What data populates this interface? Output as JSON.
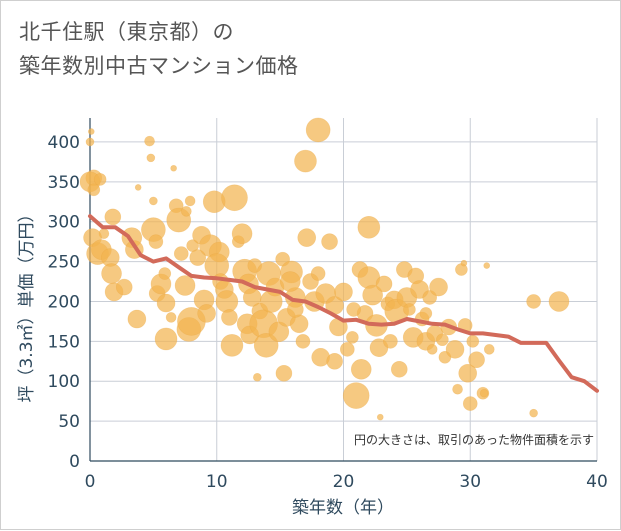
{
  "title_line1": "北千住駅（東京都）の",
  "title_line2": "築年数別中古マンション価格",
  "colors": {
    "bubble": "#f2b450",
    "line": "#d26a5a",
    "grid": "#c9ced6",
    "axis": "#2f4a5e"
  },
  "chart_data": {
    "type": "scatter",
    "title": "北千住駅（東京都）の築年数別中古マンション価格",
    "xlabel": "築年数（年）",
    "ylabel": "坪（3.3㎡）単価（万円）",
    "xlim": [
      0,
      40
    ],
    "ylim": [
      0,
      430
    ],
    "xticks": [
      "0",
      "10",
      "20",
      "30",
      "40"
    ],
    "yticks": [
      "0",
      "50",
      "100",
      "150",
      "200",
      "250",
      "300",
      "350",
      "400"
    ],
    "annotation": "円の大きさは、取引のあった物件面積を示す",
    "grid": true,
    "bubbles": [
      {
        "x": 0.1,
        "y": 413,
        "s": 3
      },
      {
        "x": 0.0,
        "y": 400,
        "s": 4
      },
      {
        "x": 0.3,
        "y": 355,
        "s": 8
      },
      {
        "x": 0.0,
        "y": 350,
        "s": 10
      },
      {
        "x": 0.8,
        "y": 353,
        "s": 6
      },
      {
        "x": 0.3,
        "y": 340,
        "s": 6
      },
      {
        "x": 1.1,
        "y": 285,
        "s": 5
      },
      {
        "x": 0.2,
        "y": 280,
        "s": 9
      },
      {
        "x": 0.6,
        "y": 260,
        "s": 11
      },
      {
        "x": 0.9,
        "y": 265,
        "s": 10
      },
      {
        "x": 1.8,
        "y": 306,
        "s": 8
      },
      {
        "x": 1.6,
        "y": 255,
        "s": 9
      },
      {
        "x": 1.7,
        "y": 235,
        "s": 10
      },
      {
        "x": 1.9,
        "y": 212,
        "s": 9
      },
      {
        "x": 2.7,
        "y": 218,
        "s": 8
      },
      {
        "x": 3.3,
        "y": 280,
        "s": 10
      },
      {
        "x": 3.5,
        "y": 265,
        "s": 9
      },
      {
        "x": 3.8,
        "y": 343,
        "s": 3
      },
      {
        "x": 3.7,
        "y": 178,
        "s": 9
      },
      {
        "x": 4.7,
        "y": 401,
        "s": 5
      },
      {
        "x": 4.8,
        "y": 380,
        "s": 4
      },
      {
        "x": 5.0,
        "y": 326,
        "s": 4
      },
      {
        "x": 5.0,
        "y": 290,
        "s": 12
      },
      {
        "x": 5.2,
        "y": 275,
        "s": 7
      },
      {
        "x": 5.3,
        "y": 210,
        "s": 8
      },
      {
        "x": 5.6,
        "y": 222,
        "s": 10
      },
      {
        "x": 5.9,
        "y": 235,
        "s": 6
      },
      {
        "x": 6.0,
        "y": 198,
        "s": 9
      },
      {
        "x": 6.0,
        "y": 153,
        "s": 11
      },
      {
        "x": 6.4,
        "y": 180,
        "s": 5
      },
      {
        "x": 6.6,
        "y": 367,
        "s": 3
      },
      {
        "x": 6.8,
        "y": 320,
        "s": 7
      },
      {
        "x": 7.0,
        "y": 302,
        "s": 12
      },
      {
        "x": 7.2,
        "y": 260,
        "s": 7
      },
      {
        "x": 7.5,
        "y": 220,
        "s": 10
      },
      {
        "x": 7.8,
        "y": 165,
        "s": 12
      },
      {
        "x": 8.0,
        "y": 175,
        "s": 14
      },
      {
        "x": 7.6,
        "y": 313,
        "s": 5
      },
      {
        "x": 7.9,
        "y": 326,
        "s": 5
      },
      {
        "x": 8.1,
        "y": 270,
        "s": 6
      },
      {
        "x": 8.5,
        "y": 255,
        "s": 8
      },
      {
        "x": 8.8,
        "y": 283,
        "s": 9
      },
      {
        "x": 9.0,
        "y": 202,
        "s": 10
      },
      {
        "x": 9.2,
        "y": 185,
        "s": 9
      },
      {
        "x": 9.5,
        "y": 270,
        "s": 11
      },
      {
        "x": 9.8,
        "y": 325,
        "s": 11
      },
      {
        "x": 10.2,
        "y": 262,
        "s": 10
      },
      {
        "x": 10.0,
        "y": 245,
        "s": 12
      },
      {
        "x": 10.3,
        "y": 225,
        "s": 8
      },
      {
        "x": 10.6,
        "y": 215,
        "s": 9
      },
      {
        "x": 10.8,
        "y": 200,
        "s": 11
      },
      {
        "x": 11.0,
        "y": 180,
        "s": 8
      },
      {
        "x": 11.2,
        "y": 145,
        "s": 11
      },
      {
        "x": 11.4,
        "y": 330,
        "s": 13
      },
      {
        "x": 11.7,
        "y": 275,
        "s": 6
      },
      {
        "x": 12.0,
        "y": 285,
        "s": 10
      },
      {
        "x": 12.2,
        "y": 238,
        "s": 12
      },
      {
        "x": 12.5,
        "y": 222,
        "s": 10
      },
      {
        "x": 12.8,
        "y": 205,
        "s": 9
      },
      {
        "x": 12.4,
        "y": 172,
        "s": 10
      },
      {
        "x": 12.6,
        "y": 158,
        "s": 9
      },
      {
        "x": 13.0,
        "y": 245,
        "s": 7
      },
      {
        "x": 13.2,
        "y": 105,
        "s": 4
      },
      {
        "x": 13.4,
        "y": 188,
        "s": 8
      },
      {
        "x": 13.7,
        "y": 172,
        "s": 14
      },
      {
        "x": 13.9,
        "y": 145,
        "s": 12
      },
      {
        "x": 14.1,
        "y": 235,
        "s": 12
      },
      {
        "x": 14.3,
        "y": 200,
        "s": 11
      },
      {
        "x": 14.6,
        "y": 218,
        "s": 9
      },
      {
        "x": 14.9,
        "y": 162,
        "s": 10
      },
      {
        "x": 15.2,
        "y": 253,
        "s": 7
      },
      {
        "x": 15.3,
        "y": 110,
        "s": 8
      },
      {
        "x": 15.5,
        "y": 180,
        "s": 9
      },
      {
        "x": 15.9,
        "y": 237,
        "s": 11
      },
      {
        "x": 16.2,
        "y": 205,
        "s": 10
      },
      {
        "x": 16.5,
        "y": 172,
        "s": 9
      },
      {
        "x": 16.8,
        "y": 150,
        "s": 7
      },
      {
        "x": 17.0,
        "y": 376,
        "s": 11
      },
      {
        "x": 17.1,
        "y": 280,
        "s": 9
      },
      {
        "x": 17.4,
        "y": 225,
        "s": 8
      },
      {
        "x": 17.7,
        "y": 200,
        "s": 10
      },
      {
        "x": 18.0,
        "y": 415,
        "s": 12
      },
      {
        "x": 18.0,
        "y": 235,
        "s": 7
      },
      {
        "x": 18.2,
        "y": 130,
        "s": 9
      },
      {
        "x": 18.6,
        "y": 210,
        "s": 10
      },
      {
        "x": 18.9,
        "y": 275,
        "s": 8
      },
      {
        "x": 19.3,
        "y": 195,
        "s": 9
      },
      {
        "x": 19.3,
        "y": 125,
        "s": 8
      },
      {
        "x": 19.6,
        "y": 168,
        "s": 9
      },
      {
        "x": 20.0,
        "y": 212,
        "s": 9
      },
      {
        "x": 20.3,
        "y": 140,
        "s": 7
      },
      {
        "x": 20.7,
        "y": 155,
        "s": 6
      },
      {
        "x": 21.0,
        "y": 82,
        "s": 13
      },
      {
        "x": 21.3,
        "y": 240,
        "s": 8
      },
      {
        "x": 21.4,
        "y": 115,
        "s": 10
      },
      {
        "x": 21.7,
        "y": 185,
        "s": 8
      },
      {
        "x": 22.0,
        "y": 293,
        "s": 11
      },
      {
        "x": 22.0,
        "y": 230,
        "s": 11
      },
      {
        "x": 22.3,
        "y": 208,
        "s": 10
      },
      {
        "x": 22.6,
        "y": 170,
        "s": 11
      },
      {
        "x": 22.8,
        "y": 142,
        "s": 9
      },
      {
        "x": 22.9,
        "y": 55,
        "s": 3
      },
      {
        "x": 23.2,
        "y": 222,
        "s": 8
      },
      {
        "x": 23.5,
        "y": 197,
        "s": 7
      },
      {
        "x": 23.7,
        "y": 150,
        "s": 7
      },
      {
        "x": 24.0,
        "y": 202,
        "s": 9
      },
      {
        "x": 24.2,
        "y": 188,
        "s": 12
      },
      {
        "x": 24.4,
        "y": 115,
        "s": 8
      },
      {
        "x": 24.8,
        "y": 240,
        "s": 8
      },
      {
        "x": 25.0,
        "y": 205,
        "s": 10
      },
      {
        "x": 25.2,
        "y": 190,
        "s": 6
      },
      {
        "x": 25.5,
        "y": 155,
        "s": 10
      },
      {
        "x": 25.7,
        "y": 232,
        "s": 8
      },
      {
        "x": 26.0,
        "y": 215,
        "s": 9
      },
      {
        "x": 26.2,
        "y": 178,
        "s": 7
      },
      {
        "x": 26.5,
        "y": 150,
        "s": 9
      },
      {
        "x": 26.8,
        "y": 205,
        "s": 7
      },
      {
        "x": 27.2,
        "y": 160,
        "s": 8
      },
      {
        "x": 27.5,
        "y": 218,
        "s": 9
      },
      {
        "x": 27.8,
        "y": 152,
        "s": 6
      },
      {
        "x": 28.0,
        "y": 130,
        "s": 6
      },
      {
        "x": 28.3,
        "y": 168,
        "s": 8
      },
      {
        "x": 28.8,
        "y": 140,
        "s": 9
      },
      {
        "x": 29.0,
        "y": 90,
        "s": 5
      },
      {
        "x": 29.3,
        "y": 240,
        "s": 6
      },
      {
        "x": 29.5,
        "y": 248,
        "s": 3
      },
      {
        "x": 29.6,
        "y": 170,
        "s": 7
      },
      {
        "x": 29.8,
        "y": 110,
        "s": 9
      },
      {
        "x": 30.0,
        "y": 72,
        "s": 7
      },
      {
        "x": 30.2,
        "y": 150,
        "s": 6
      },
      {
        "x": 30.5,
        "y": 127,
        "s": 8
      },
      {
        "x": 31.0,
        "y": 85,
        "s": 6
      },
      {
        "x": 31.1,
        "y": 85,
        "s": 4
      },
      {
        "x": 31.3,
        "y": 245,
        "s": 3
      },
      {
        "x": 31.5,
        "y": 140,
        "s": 5
      },
      {
        "x": 35.0,
        "y": 200,
        "s": 7
      },
      {
        "x": 35.0,
        "y": 60,
        "s": 4
      },
      {
        "x": 37.0,
        "y": 200,
        "s": 10
      },
      {
        "x": 26.5,
        "y": 185,
        "s": 6
      },
      {
        "x": 27.0,
        "y": 140,
        "s": 5
      },
      {
        "x": 15.8,
        "y": 225,
        "s": 10
      },
      {
        "x": 16.2,
        "y": 190,
        "s": 8
      },
      {
        "x": 20.8,
        "y": 190,
        "s": 7
      }
    ],
    "trend": {
      "name": "",
      "x": [
        0,
        1,
        2,
        3,
        4,
        5,
        6,
        7,
        8,
        9,
        10,
        11,
        12,
        13,
        14,
        15,
        16,
        17,
        18,
        19,
        20,
        21,
        22,
        23,
        24,
        25,
        26,
        27,
        28,
        29,
        30,
        31,
        32,
        33,
        34,
        35,
        36,
        37,
        38,
        39,
        40
      ],
      "y": [
        307,
        293,
        293,
        282,
        258,
        250,
        254,
        243,
        232,
        230,
        229,
        227,
        225,
        218,
        215,
        212,
        202,
        200,
        193,
        185,
        176,
        177,
        172,
        171,
        172,
        178,
        175,
        172,
        171,
        165,
        160,
        160,
        158,
        156,
        148,
        148,
        148,
        126,
        105,
        100,
        88
      ]
    }
  }
}
